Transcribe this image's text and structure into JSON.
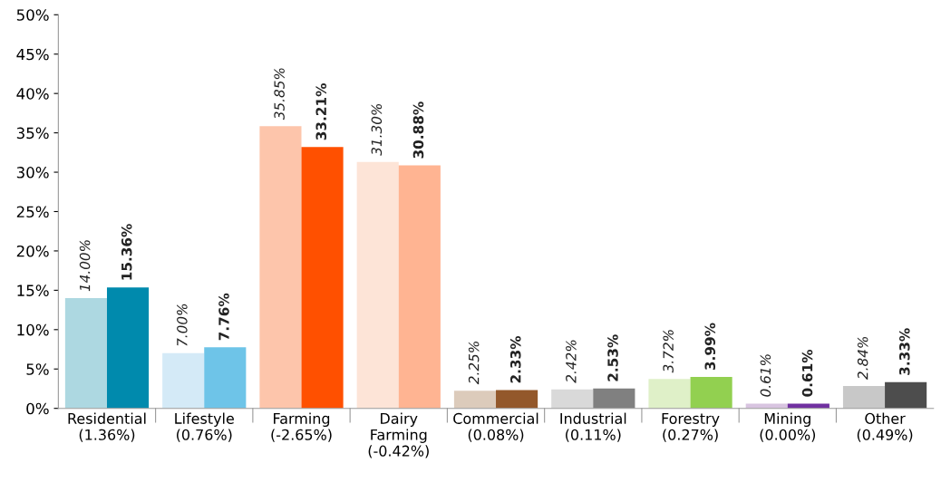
{
  "chart_data": {
    "type": "bar",
    "categories": [
      "Residential\n(1.36%)",
      "Lifestyle\n(0.76%)",
      "Farming\n(-2.65%)",
      "Dairy\nFarming\n(-0.42%)",
      "Commercial\n(0.08%)",
      "Industrial\n(0.11%)",
      "Forestry\n(0.27%)",
      "Mining\n(0.00%)",
      "Other\n(0.49%)"
    ],
    "series": [
      {
        "values": [
          14.0,
          7.0,
          35.85,
          31.3,
          2.25,
          2.42,
          3.72,
          0.61,
          2.84
        ],
        "colors": [
          "#add8e1",
          "#d4eaf7",
          "#fdc5ab",
          "#fde4d7",
          "#dccbbb",
          "#d9d9d9",
          "#dff0c8",
          "#d8c4e0",
          "#c8c8c8"
        ],
        "value_labels": [
          "14.00%",
          "7.00%",
          "35.85%",
          "31.30%",
          "2.25%",
          "2.42%",
          "3.72%",
          "0.61%",
          "2.84%"
        ]
      },
      {
        "values": [
          15.36,
          7.76,
          33.21,
          30.88,
          2.33,
          2.53,
          3.99,
          0.61,
          3.33
        ],
        "colors": [
          "#008aad",
          "#6ec4e8",
          "#ff5000",
          "#ffb492",
          "#93582b",
          "#808080",
          "#92d050",
          "#7030a0",
          "#4d4d4d"
        ],
        "value_labels": [
          "15.36%",
          "7.76%",
          "33.21%",
          "30.88%",
          "2.33%",
          "2.53%",
          "3.99%",
          "0.61%",
          "3.33%"
        ]
      }
    ],
    "ylim": [
      0,
      50
    ],
    "yticks": [
      {
        "value": 0,
        "label": "0%"
      },
      {
        "value": 5,
        "label": "5%"
      },
      {
        "value": 10,
        "label": "10%"
      },
      {
        "value": 15,
        "label": "15%"
      },
      {
        "value": 20,
        "label": "20%"
      },
      {
        "value": 25,
        "label": "25%"
      },
      {
        "value": 30,
        "label": "30%"
      },
      {
        "value": 35,
        "label": "35%"
      },
      {
        "value": 40,
        "label": "40%"
      },
      {
        "value": 45,
        "label": "45%"
      },
      {
        "value": 50,
        "label": "50%"
      }
    ],
    "grid": false
  }
}
